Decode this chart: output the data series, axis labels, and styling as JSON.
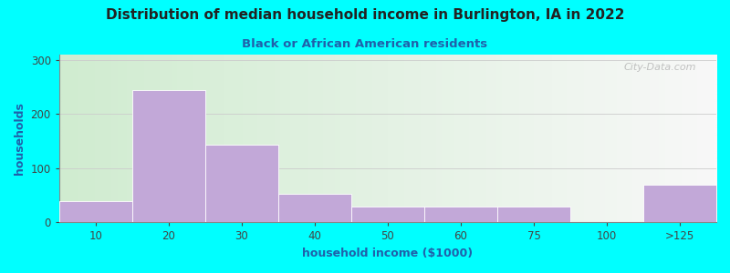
{
  "title": "Distribution of median household income in Burlington, IA in 2022",
  "subtitle": "Black or African American residents",
  "xlabel": "household income ($1000)",
  "ylabel": "households",
  "background_color": "#00FFFF",
  "plot_bg_gradient_left": "#d0ecd0",
  "plot_bg_gradient_right": "#f8f8f8",
  "bar_color": "#c2a8d8",
  "bar_edgecolor": "#ffffff",
  "categories": [
    "10",
    "20",
    "30",
    "40",
    "50",
    "60",
    "75",
    "100",
    ">125"
  ],
  "values": [
    40,
    245,
    143,
    52,
    30,
    30,
    30,
    0,
    70
  ],
  "yticks": [
    0,
    100,
    200,
    300
  ],
  "ylim": [
    0,
    310
  ],
  "title_fontsize": 11,
  "subtitle_fontsize": 9.5,
  "axis_label_fontsize": 9,
  "tick_fontsize": 8.5,
  "watermark": "City-Data.com",
  "title_color": "#222222",
  "subtitle_color": "#2060aa",
  "ylabel_color": "#2060aa",
  "xlabel_color": "#2060aa"
}
